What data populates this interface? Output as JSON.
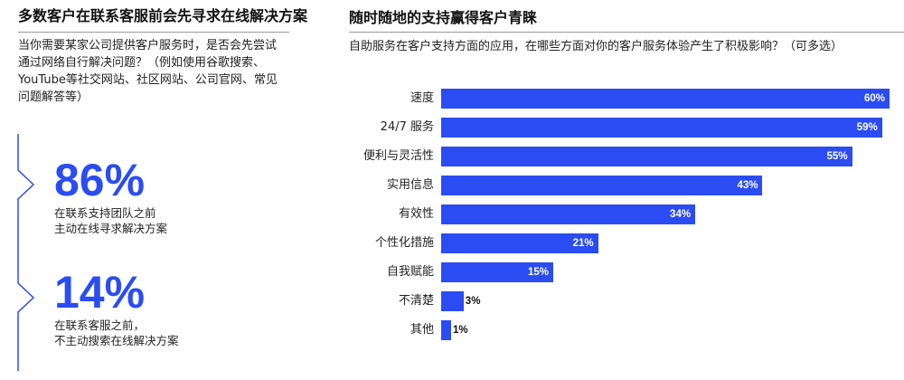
{
  "left_panel": {
    "title": "多数客户在联系客服前会先寻求在线解决方案",
    "question_lines": [
      "当你需要某家公司提供客户服务时，是否会先尝试",
      "通过网络自行解决问题？（例如使用谷歌搜索、",
      "YouTube等社交网站、社区网站、公司官网、常见",
      "问题解答等）"
    ],
    "stats": [
      {
        "value": "86%",
        "desc_lines": [
          "在联系支持团队之前",
          "主动在线寻求解决方案"
        ]
      },
      {
        "value": "14%",
        "desc_lines": [
          "在联系客服之前，",
          "不主动搜索在线解决方案"
        ]
      }
    ],
    "accent_color": "#2b4cf2"
  },
  "right_panel": {
    "title": "随时随地的支持赢得客户青睐",
    "subtitle": "自助服务在客户支持方面的应用，在哪些方面对你的客户服务体验产生了积极影响？（可多选）"
  },
  "chart_data": {
    "type": "bar",
    "orientation": "horizontal",
    "title": "随时随地的支持赢得客户青睐",
    "subtitle": "自助服务在客户支持方面的应用，在哪些方面对你的客户服务体验产生了积极影响？（可多选）",
    "categories": [
      "速度",
      "24/7 服务",
      "便利与灵活性",
      "实用信息",
      "有效性",
      "个性化措施",
      "自我赋能",
      "不清楚",
      "其他"
    ],
    "values": [
      60,
      59,
      55,
      43,
      34,
      21,
      15,
      3,
      1
    ],
    "value_labels": [
      "60%",
      "59%",
      "55%",
      "43%",
      "34%",
      "21%",
      "15%",
      "3%",
      "1%"
    ],
    "xlabel": "",
    "ylabel": "",
    "xlim": [
      0,
      60
    ],
    "grid": false,
    "legend": "none",
    "bar_color": "#2b4cf2",
    "unit": "%"
  }
}
